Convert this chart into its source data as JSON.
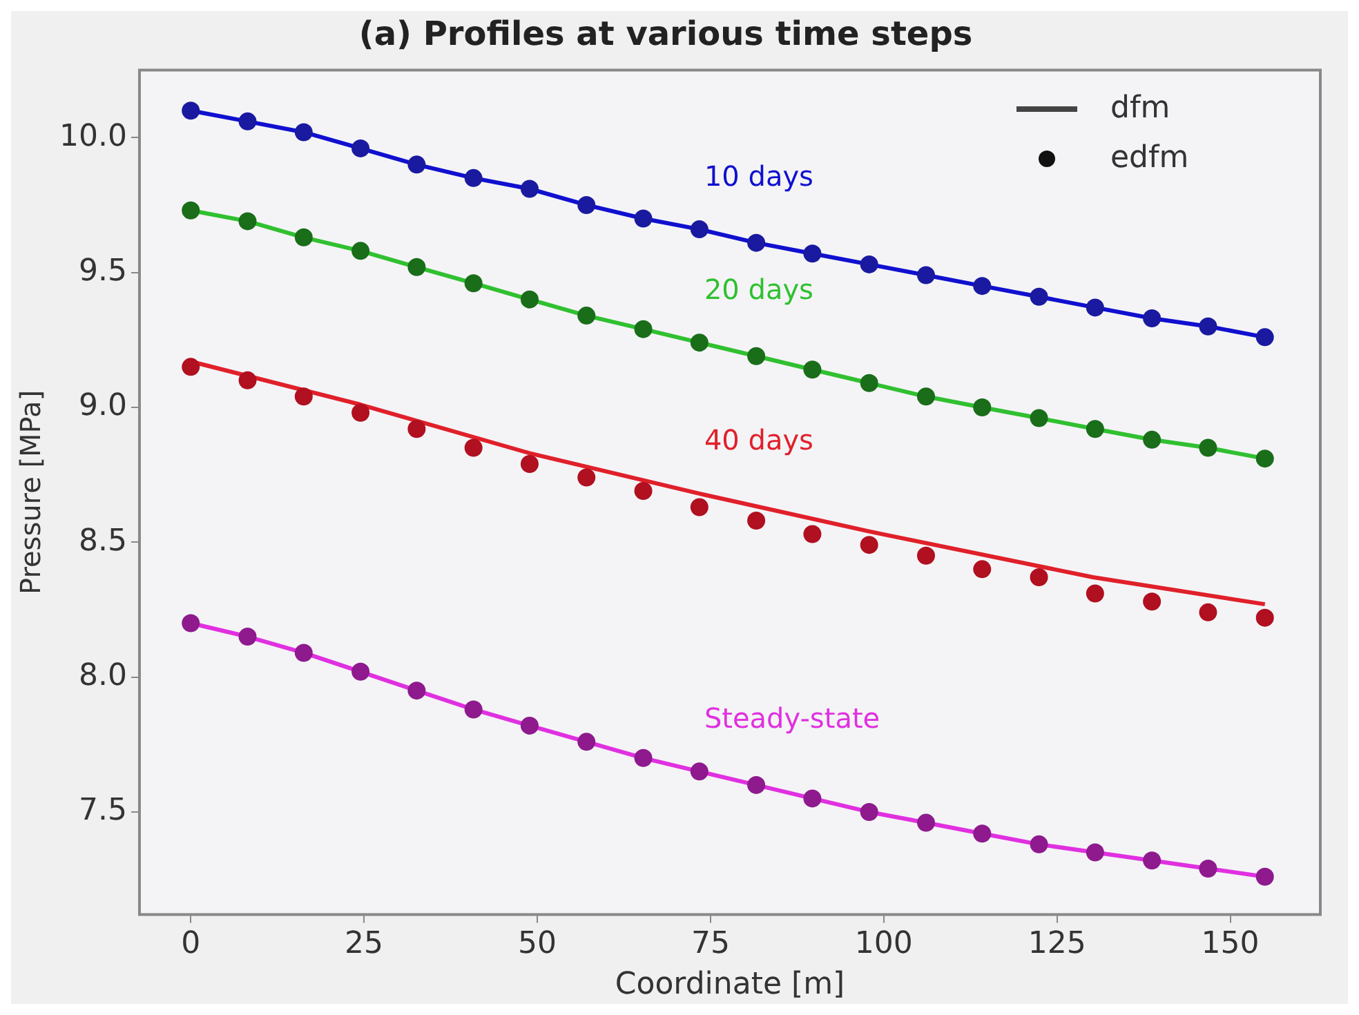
{
  "chart_data": {
    "type": "line",
    "title": "(a) Profiles at various time steps",
    "xlabel": "Coordinate [m]",
    "ylabel": "Pressure [MPa]",
    "xlim": [
      -7.4,
      163
    ],
    "xticks": [
      0,
      25,
      50,
      75,
      100,
      125,
      150
    ],
    "ylim": [
      7.12,
      10.25
    ],
    "yticks": [
      7.5,
      {
        "value": 8,
        "label": "8.0"
      },
      8.5,
      {
        "value": 9,
        "label": "9.0"
      },
      9.5,
      {
        "value": 10,
        "label": "10.0"
      }
    ],
    "grid": false,
    "legend": "top right",
    "line_style": "solid",
    "series": [
      {
        "name": "10 days",
        "marker": "none",
        "color": "#1010d0",
        "x": [
          0,
          8.2,
          16.3,
          24.5,
          32.6,
          40.8,
          48.9,
          57.1,
          65.3,
          73.4,
          81.6,
          89.7,
          97.9,
          106.1,
          114.2,
          122.4,
          130.5,
          138.7,
          146.8,
          155
        ],
        "values": [
          10.1,
          10.06,
          10.02,
          9.96,
          9.9,
          9.85,
          9.81,
          9.75,
          9.7,
          9.66,
          9.61,
          9.57,
          9.53,
          9.49,
          9.45,
          9.41,
          9.37,
          9.33,
          9.3,
          9.26
        ]
      },
      {
        "type": "scatter",
        "marker": "circle",
        "color": "#1a1aa0",
        "x": [
          0,
          8.2,
          16.3,
          24.5,
          32.6,
          40.8,
          48.9,
          57.1,
          65.3,
          73.4,
          81.6,
          89.7,
          97.9,
          106.1,
          114.2,
          122.4,
          130.5,
          138.7,
          146.8,
          155
        ],
        "values": [
          10.1,
          10.06,
          10.02,
          9.96,
          9.9,
          9.85,
          9.81,
          9.75,
          9.7,
          9.66,
          9.61,
          9.57,
          9.53,
          9.49,
          9.45,
          9.41,
          9.37,
          9.33,
          9.3,
          9.26
        ]
      },
      {
        "name": "20 days",
        "marker": "none",
        "color": "#30c030",
        "x": [
          0,
          8.2,
          16.3,
          24.5,
          32.6,
          40.8,
          48.9,
          57.1,
          65.3,
          73.4,
          81.6,
          89.7,
          97.9,
          106.1,
          114.2,
          122.4,
          130.5,
          138.7,
          146.8,
          155
        ],
        "values": [
          9.73,
          9.69,
          9.63,
          9.58,
          9.52,
          9.46,
          9.4,
          9.34,
          9.29,
          9.24,
          9.19,
          9.14,
          9.09,
          9.04,
          9.0,
          8.96,
          8.92,
          8.88,
          8.85,
          8.81
        ]
      },
      {
        "type": "scatter",
        "marker": "circle",
        "color": "#1a6e1a",
        "x": [
          0,
          8.2,
          16.3,
          24.5,
          32.6,
          40.8,
          48.9,
          57.1,
          65.3,
          73.4,
          81.6,
          89.7,
          97.9,
          106.1,
          114.2,
          122.4,
          130.5,
          138.7,
          146.8,
          155
        ],
        "values": [
          9.73,
          9.69,
          9.63,
          9.58,
          9.52,
          9.46,
          9.4,
          9.34,
          9.29,
          9.24,
          9.19,
          9.14,
          9.09,
          9.04,
          9.0,
          8.96,
          8.92,
          8.88,
          8.85,
          8.81
        ]
      },
      {
        "name": "40 days",
        "marker": "none",
        "color": "#e0202a",
        "x": [
          0,
          24.5,
          48.9,
          73.4,
          97.9,
          130.2,
          155
        ],
        "values": [
          9.17,
          9.01,
          8.83,
          8.68,
          8.54,
          8.37,
          8.27
        ]
      },
      {
        "type": "scatter",
        "marker": "circle",
        "color": "#b01020",
        "x": [
          0,
          8.2,
          16.3,
          24.5,
          32.6,
          40.8,
          48.9,
          57.1,
          65.3,
          73.4,
          81.6,
          89.7,
          97.9,
          106.1,
          114.2,
          122.4,
          130.5,
          138.7,
          146.8,
          155
        ],
        "values": [
          9.15,
          9.1,
          9.04,
          8.98,
          8.92,
          8.85,
          8.79,
          8.74,
          8.69,
          8.63,
          8.58,
          8.53,
          8.49,
          8.45,
          8.4,
          8.37,
          8.31,
          8.28,
          8.24,
          8.22
        ]
      },
      {
        "name": "Steady-state",
        "marker": "none",
        "color": "#e030e0",
        "x": [
          0,
          8.2,
          16.3,
          24.5,
          32.6,
          40.8,
          48.9,
          57.1,
          65.3,
          73.4,
          81.6,
          89.7,
          97.9,
          106.1,
          114.2,
          122.4,
          130.5,
          138.7,
          146.8,
          155
        ],
        "values": [
          8.2,
          8.15,
          8.09,
          8.02,
          7.95,
          7.88,
          7.82,
          7.76,
          7.7,
          7.65,
          7.6,
          7.55,
          7.5,
          7.46,
          7.42,
          7.38,
          7.35,
          7.32,
          7.29,
          7.26
        ]
      },
      {
        "type": "scatter",
        "marker": "circle",
        "color": "#8e1a8e",
        "x": [
          0,
          8.2,
          16.3,
          24.5,
          32.6,
          40.8,
          48.9,
          57.1,
          65.3,
          73.4,
          81.6,
          89.7,
          97.9,
          106.1,
          114.2,
          122.4,
          130.5,
          138.7,
          146.8,
          155
        ],
        "values": [
          8.2,
          8.15,
          8.09,
          8.02,
          7.95,
          7.88,
          7.82,
          7.76,
          7.7,
          7.65,
          7.6,
          7.55,
          7.5,
          7.46,
          7.42,
          7.38,
          7.35,
          7.32,
          7.29,
          7.26
        ]
      }
    ],
    "annotations": [
      "dfm",
      "edfm"
    ]
  }
}
